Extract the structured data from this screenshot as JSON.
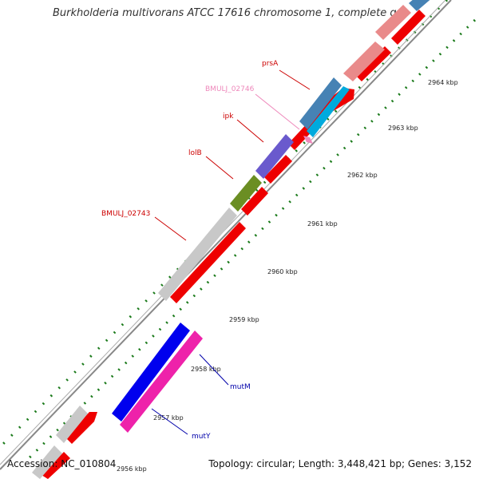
{
  "title": "Burkholderia multivorans ATCC 17616 chromosome 1, complete g...",
  "footer": {
    "accession": "Accession: NC_010804",
    "stats": "Topology: circular; Length: 3,448,421 bp; Genes: 3,152"
  },
  "scale": {
    "ticks": [
      {
        "label": "2956 kbp"
      },
      {
        "label": "2957 kbp"
      },
      {
        "label": "2958 kbp"
      },
      {
        "label": "2959 kbp"
      },
      {
        "label": "2960 kbp"
      },
      {
        "label": "2961 kbp"
      },
      {
        "label": "2962 kbp"
      },
      {
        "label": "2963 kbp"
      },
      {
        "label": "2964 kbp"
      }
    ]
  },
  "genes": [
    {
      "name": "prsA",
      "color": "#cc0000"
    },
    {
      "name": "BMULJ_02746",
      "color": "#ee88bb"
    },
    {
      "name": "ipk",
      "color": "#cc0000"
    },
    {
      "name": "lolB",
      "color": "#cc0000"
    },
    {
      "name": "BMULJ_02743",
      "color": "#cc0000"
    },
    {
      "name": "mutM",
      "color": "#0000aa"
    },
    {
      "name": "mutY",
      "color": "#0000aa"
    }
  ],
  "colors": {
    "cds_red": "#ee0000",
    "gene_gray": "#c8c8c8",
    "tick_green": "#1a7a1a",
    "backbone": "#888888"
  }
}
